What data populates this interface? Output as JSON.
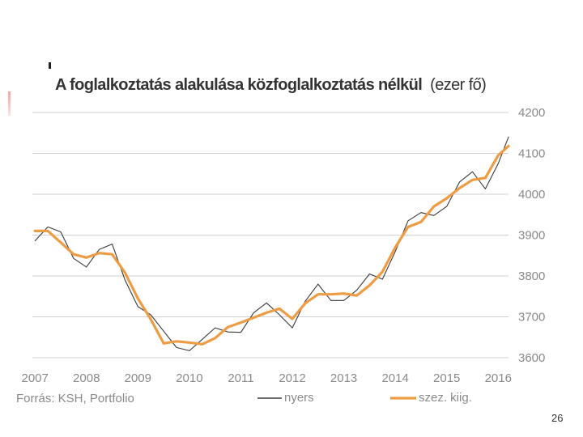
{
  "slide": {
    "page_number": "26"
  },
  "chart_data": {
    "type": "line",
    "title": "A foglalkoztatás alakulása közfoglalkoztatás nélkül",
    "title_unit": "(ezer fő)",
    "source": "Forrás: KSH, Portfolio",
    "x_tick_labels": [
      "2007",
      "2008",
      "2009",
      "2010",
      "2011",
      "2012",
      "2013",
      "2014",
      "2015",
      "2016"
    ],
    "y_tick_labels": [
      "4200",
      "4100",
      "4000",
      "3900",
      "3800",
      "3700",
      "3600"
    ],
    "ylim": [
      3600,
      4200
    ],
    "xlim": [
      2006.95,
      2016.2
    ],
    "grid": "horizontal",
    "legend_position": "bottom",
    "series": [
      {
        "name": "nyers",
        "color": "#3a3a3a",
        "x": [
          2007.0,
          2007.25,
          2007.5,
          2007.75,
          2008.0,
          2008.25,
          2008.5,
          2008.75,
          2009.0,
          2009.25,
          2009.5,
          2009.75,
          2010.0,
          2010.25,
          2010.5,
          2010.75,
          2011.0,
          2011.25,
          2011.5,
          2011.75,
          2012.0,
          2012.25,
          2012.5,
          2012.75,
          2013.0,
          2013.25,
          2013.5,
          2013.75,
          2014.0,
          2014.25,
          2014.5,
          2014.75,
          2015.0,
          2015.25,
          2015.5,
          2015.75,
          2016.0,
          2016.2
        ],
        "values": [
          3886,
          3920,
          3908,
          3843,
          3822,
          3865,
          3878,
          3790,
          3725,
          3705,
          3665,
          3625,
          3617,
          3645,
          3673,
          3663,
          3662,
          3710,
          3734,
          3705,
          3673,
          3738,
          3780,
          3740,
          3740,
          3765,
          3805,
          3792,
          3860,
          3935,
          3955,
          3948,
          3970,
          4030,
          4055,
          4013,
          4075,
          4140
        ]
      },
      {
        "name": "szez. kiig.",
        "color": "#ee9c44",
        "x": [
          2007.0,
          2007.25,
          2007.5,
          2007.75,
          2008.0,
          2008.25,
          2008.5,
          2008.75,
          2009.0,
          2009.25,
          2009.5,
          2009.75,
          2010.0,
          2010.25,
          2010.5,
          2010.75,
          2011.0,
          2011.25,
          2011.5,
          2011.75,
          2012.0,
          2012.25,
          2012.5,
          2012.75,
          2013.0,
          2013.25,
          2013.5,
          2013.75,
          2014.0,
          2014.25,
          2014.5,
          2014.75,
          2015.0,
          2015.25,
          2015.5,
          2015.75,
          2016.0,
          2016.2
        ],
        "values": [
          3910,
          3910,
          3882,
          3853,
          3845,
          3856,
          3853,
          3808,
          3745,
          3694,
          3635,
          3640,
          3637,
          3633,
          3648,
          3675,
          3686,
          3698,
          3710,
          3720,
          3695,
          3733,
          3755,
          3755,
          3757,
          3752,
          3777,
          3810,
          3870,
          3920,
          3932,
          3970,
          3990,
          4015,
          4035,
          4040,
          4095,
          4118
        ]
      }
    ]
  }
}
